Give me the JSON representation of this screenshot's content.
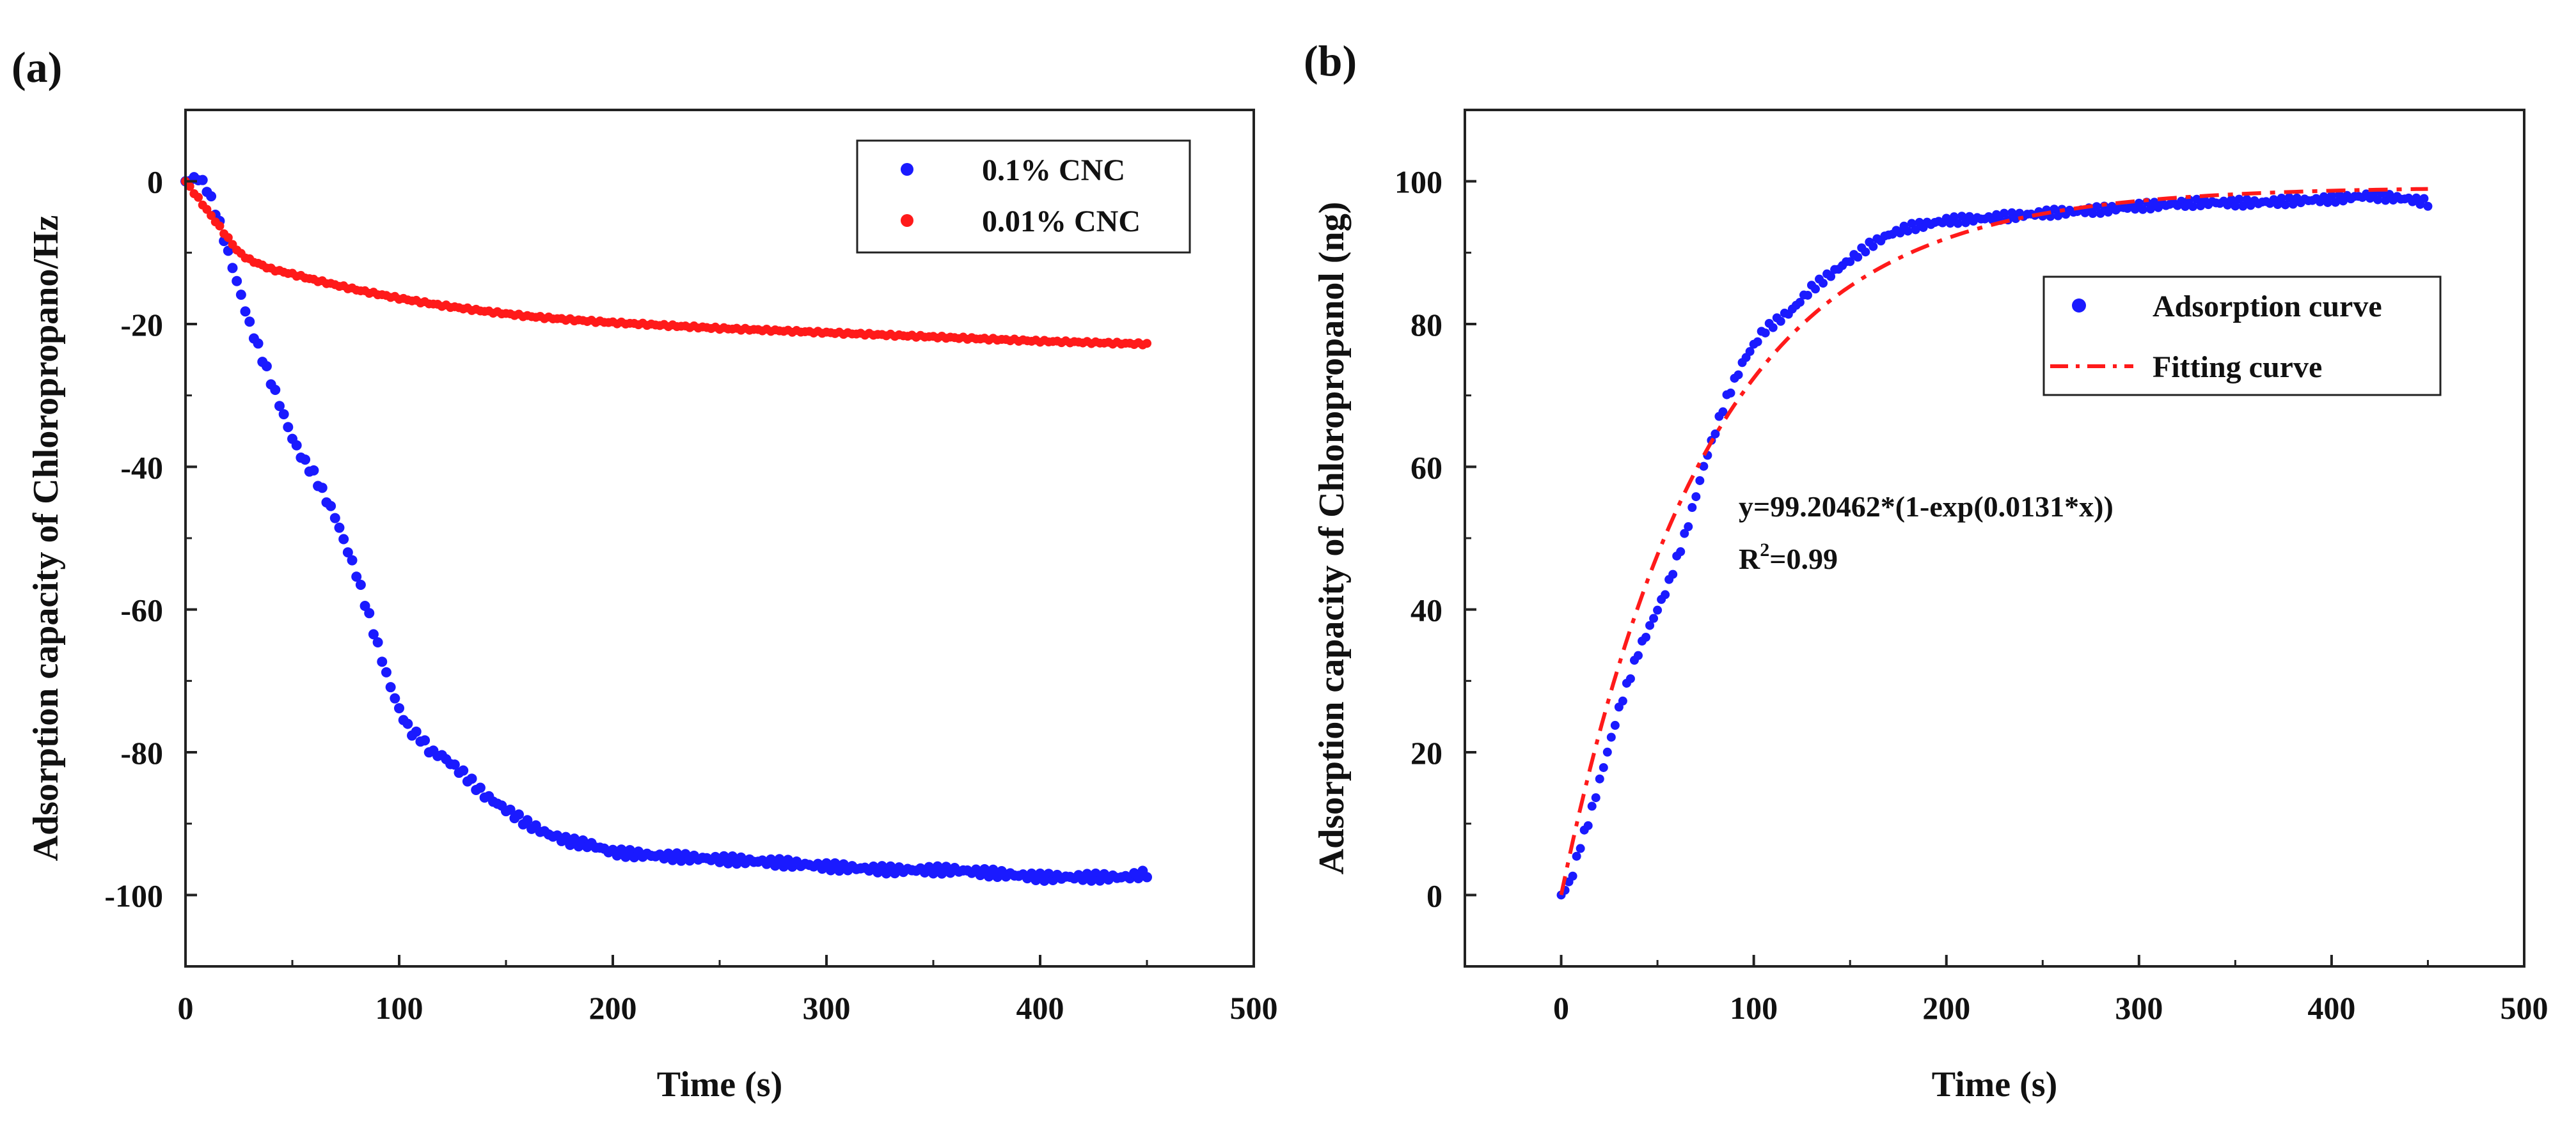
{
  "colors": {
    "blue": "#1a1aff",
    "red": "#ff1a1a",
    "axis": "#222222"
  },
  "chart_data": [
    {
      "type": "scatter",
      "panel_label": "(a)",
      "title": "",
      "xlabel": "Time (s)",
      "ylabel": "Adsorption capacity of Chloropropano/Hz",
      "xlim": [
        0,
        500
      ],
      "ylim": [
        -110,
        10
      ],
      "xticks": [
        0,
        100,
        200,
        300,
        400,
        500
      ],
      "yticks": [
        0,
        -20,
        -40,
        -60,
        -80,
        -100
      ],
      "grid": false,
      "legend_position": "top-right",
      "series": [
        {
          "name": "0.1% CNC",
          "color": "#1a1aff",
          "style": "dense-markers",
          "points": [
            [
              0,
              0
            ],
            [
              6,
              0.5
            ],
            [
              10,
              -1
            ],
            [
              15,
              -5
            ],
            [
              20,
              -10
            ],
            [
              25,
              -15
            ],
            [
              30,
              -20
            ],
            [
              35,
              -24
            ],
            [
              40,
              -28
            ],
            [
              45,
              -32
            ],
            [
              50,
              -36
            ],
            [
              55,
              -39
            ],
            [
              60,
              -41
            ],
            [
              65,
              -44
            ],
            [
              70,
              -47
            ],
            [
              75,
              -51
            ],
            [
              80,
              -55
            ],
            [
              85,
              -60
            ],
            [
              90,
              -65
            ],
            [
              95,
              -70
            ],
            [
              100,
              -74
            ],
            [
              105,
              -77
            ],
            [
              110,
              -78
            ],
            [
              115,
              -80
            ],
            [
              120,
              -80.5
            ],
            [
              130,
              -83
            ],
            [
              140,
              -86
            ],
            [
              150,
              -88
            ],
            [
              160,
              -90
            ],
            [
              170,
              -91.5
            ],
            [
              180,
              -92.5
            ],
            [
              190,
              -93
            ],
            [
              200,
              -94
            ],
            [
              220,
              -94.5
            ],
            [
              250,
              -95
            ],
            [
              280,
              -95.5
            ],
            [
              300,
              -96
            ],
            [
              330,
              -96.5
            ],
            [
              360,
              -96.5
            ],
            [
              380,
              -97
            ],
            [
              400,
              -97.5
            ],
            [
              420,
              -97.5
            ],
            [
              440,
              -97.5
            ],
            [
              450,
              -97
            ]
          ]
        },
        {
          "name": "0.01% CNC",
          "color": "#ff1a1a",
          "style": "dense-markers",
          "points": [
            [
              0,
              0
            ],
            [
              5,
              -2
            ],
            [
              10,
              -4
            ],
            [
              15,
              -6
            ],
            [
              20,
              -8
            ],
            [
              25,
              -10
            ],
            [
              30,
              -11
            ],
            [
              40,
              -12.3
            ],
            [
              50,
              -13
            ],
            [
              60,
              -13.8
            ],
            [
              70,
              -14.5
            ],
            [
              80,
              -15.2
            ],
            [
              90,
              -15.8
            ],
            [
              100,
              -16.4
            ],
            [
              120,
              -17.4
            ],
            [
              140,
              -18.2
            ],
            [
              160,
              -18.9
            ],
            [
              180,
              -19.4
            ],
            [
              200,
              -19.8
            ],
            [
              250,
              -20.6
            ],
            [
              300,
              -21.2
            ],
            [
              350,
              -21.8
            ],
            [
              400,
              -22.4
            ],
            [
              450,
              -22.8
            ]
          ]
        }
      ]
    },
    {
      "type": "scatter",
      "panel_label": "(b)",
      "title": "",
      "xlabel": "Time (s)",
      "ylabel": "Adsorption capacity of Chloropropanol (ng)",
      "xlim": [
        -50,
        500
      ],
      "ylim": [
        -10,
        110
      ],
      "xticks": [
        0,
        100,
        200,
        300,
        400,
        500
      ],
      "yticks": [
        0,
        20,
        40,
        60,
        80,
        100
      ],
      "grid": false,
      "legend_position": "top-right",
      "annotation": {
        "equation": "y=99.20462*(1-exp(0.0131*x))",
        "r2_prefix": "R",
        "r2_sup": "2",
        "r2_value": "=0.99"
      },
      "series": [
        {
          "name": "Adsorption curve",
          "color": "#1a1aff",
          "style": "dense-markers",
          "points": [
            [
              0,
              0
            ],
            [
              5,
              2
            ],
            [
              10,
              7
            ],
            [
              15,
              11
            ],
            [
              20,
              16
            ],
            [
              25,
              21
            ],
            [
              30,
              26
            ],
            [
              35,
              30
            ],
            [
              40,
              34
            ],
            [
              45,
              37
            ],
            [
              50,
              40
            ],
            [
              55,
              43
            ],
            [
              60,
              47
            ],
            [
              65,
              51
            ],
            [
              70,
              56
            ],
            [
              75,
              61
            ],
            [
              80,
              65
            ],
            [
              85,
              69
            ],
            [
              90,
              72
            ],
            [
              95,
              75
            ],
            [
              100,
              77
            ],
            [
              105,
              79
            ],
            [
              110,
              80
            ],
            [
              120,
              82
            ],
            [
              130,
              85
            ],
            [
              140,
              87
            ],
            [
              150,
              89
            ],
            [
              160,
              91
            ],
            [
              170,
              92.5
            ],
            [
              180,
              93.5
            ],
            [
              190,
              94
            ],
            [
              200,
              94.5
            ],
            [
              220,
              94.8
            ],
            [
              250,
              95.5
            ],
            [
              280,
              96
            ],
            [
              300,
              96.5
            ],
            [
              330,
              97
            ],
            [
              360,
              97
            ],
            [
              400,
              97.5
            ],
            [
              420,
              98
            ],
            [
              440,
              97.5
            ],
            [
              450,
              97
            ]
          ]
        },
        {
          "name": "Fitting curve",
          "color": "#ff1a1a",
          "style": "dash-dot",
          "model": {
            "a": 99.20462,
            "k": 0.0131,
            "x_range": [
              0,
              450
            ]
          }
        }
      ]
    }
  ]
}
